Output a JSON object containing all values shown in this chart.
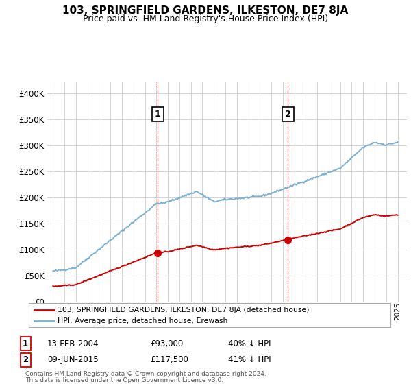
{
  "title": "103, SPRINGFIELD GARDENS, ILKESTON, DE7 8JA",
  "subtitle": "Price paid vs. HM Land Registry's House Price Index (HPI)",
  "ylim": [
    0,
    420000
  ],
  "yticks": [
    0,
    50000,
    100000,
    150000,
    200000,
    250000,
    300000,
    350000,
    400000
  ],
  "hpi_color": "#7ab0d4",
  "price_color": "#cc0000",
  "transaction1": {
    "date": "13-FEB-2004",
    "price": "93,000",
    "pct": "40%",
    "label": "1",
    "year": 2004.12
  },
  "transaction2": {
    "date": "09-JUN-2015",
    "price": "117,500",
    "pct": "41%",
    "label": "2",
    "year": 2015.45
  },
  "footnote1": "Contains HM Land Registry data © Crown copyright and database right 2024.",
  "footnote2": "This data is licensed under the Open Government Licence v3.0.",
  "legend_red": "103, SPRINGFIELD GARDENS, ILKESTON, DE7 8JA (detached house)",
  "legend_blue": "HPI: Average price, detached house, Erewash",
  "background_color": "#ffffff",
  "grid_color": "#cccccc",
  "xlim_left": 1994.5,
  "xlim_right": 2025.8
}
